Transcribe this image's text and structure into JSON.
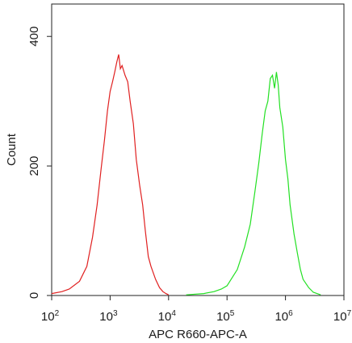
{
  "chart_data": {
    "type": "histogram",
    "title": "",
    "xlabel": "APC R660-APC-A",
    "ylabel": "Count",
    "x_scale": "log",
    "xlim": [
      100,
      10000000
    ],
    "ylim": [
      0,
      450
    ],
    "x_ticks": [
      {
        "value": 100,
        "base": "10",
        "exp": "2"
      },
      {
        "value": 1000,
        "base": "10",
        "exp": "3"
      },
      {
        "value": 10000,
        "base": "10",
        "exp": "4"
      },
      {
        "value": 100000,
        "base": "10",
        "exp": "5"
      },
      {
        "value": 1000000,
        "base": "10",
        "exp": "6"
      },
      {
        "value": 10000000,
        "base": "10",
        "exp": "7"
      }
    ],
    "y_ticks": [
      {
        "value": 0,
        "label": "0"
      },
      {
        "value": 200,
        "label": "200"
      },
      {
        "value": 400,
        "label": "400"
      }
    ],
    "grid": false,
    "legend": "none",
    "series": [
      {
        "color": "#e02020",
        "x": [
          100,
          150,
          200,
          300,
          400,
          500,
          600,
          700,
          800,
          900,
          1000,
          1100,
          1200,
          1300,
          1400,
          1500,
          1600,
          1800,
          2000,
          2200,
          2500,
          2800,
          3200,
          3600,
          4000,
          4500,
          5000,
          6000,
          7000,
          8000,
          9000,
          10000
        ],
        "y": [
          3,
          6,
          10,
          22,
          45,
          90,
          140,
          195,
          240,
          285,
          315,
          330,
          345,
          360,
          372,
          350,
          355,
          340,
          330,
          300,
          265,
          210,
          170,
          140,
          100,
          60,
          45,
          25,
          12,
          6,
          3,
          1
        ]
      },
      {
        "color": "#22e022",
        "x": [
          20000,
          40000,
          60000,
          80000,
          100000,
          150000,
          200000,
          250000,
          300000,
          350000,
          400000,
          450000,
          500000,
          550000,
          600000,
          650000,
          700000,
          750000,
          800000,
          900000,
          1000000,
          1100000,
          1200000,
          1400000,
          1600000,
          1800000,
          2000000,
          2500000,
          3000000,
          4000000
        ],
        "y": [
          1,
          3,
          6,
          10,
          15,
          40,
          75,
          110,
          160,
          205,
          250,
          285,
          300,
          335,
          340,
          320,
          345,
          325,
          290,
          260,
          210,
          180,
          140,
          95,
          65,
          40,
          25,
          12,
          5,
          1
        ]
      }
    ]
  }
}
